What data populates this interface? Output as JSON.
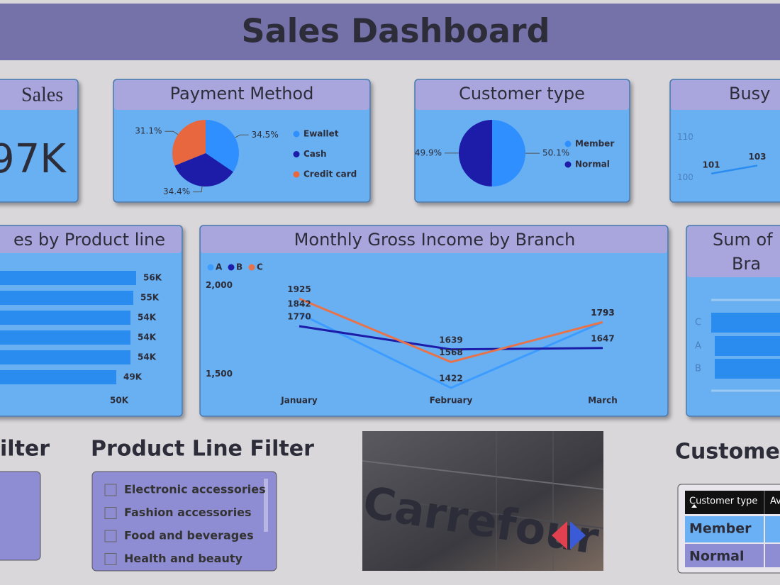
{
  "header": {
    "title": "Sales Dashboard"
  },
  "cards": [
    {
      "title": "Sales",
      "value": "97K"
    }
  ],
  "chart_data": [
    {
      "type": "pie",
      "title": "Payment Method",
      "categories": [
        "Ewallet",
        "Cash",
        "Credit card"
      ],
      "values": [
        34.5,
        34.4,
        31.1
      ],
      "value_labels": [
        "34.5%",
        "34.4%",
        "31.1%"
      ],
      "colors": [
        "#2f8fff",
        "#1c1ca8",
        "#e8673f"
      ]
    },
    {
      "type": "pie",
      "title": "Customer type",
      "categories": [
        "Member",
        "Normal"
      ],
      "values": [
        50.1,
        49.9
      ],
      "value_labels": [
        "50.1%",
        "49.9%"
      ],
      "colors": [
        "#2f8fff",
        "#1c1ca8"
      ]
    },
    {
      "type": "line",
      "title": "Busy",
      "categories": [
        null,
        null
      ],
      "values": [
        101,
        103
      ],
      "color": "#2b8cf0",
      "ylim": [
        98,
        112
      ],
      "yticks": [
        100,
        110
      ]
    },
    {
      "type": "hbar",
      "title": "es by Product line",
      "categories": [
        null,
        null,
        null,
        null,
        null,
        null
      ],
      "values": [
        56000,
        55000,
        54000,
        54000,
        54000,
        49000
      ],
      "value_labels": [
        "56K",
        "55K",
        "54K",
        "54K",
        "54K",
        "49K"
      ],
      "color": "#2b8cf0",
      "xlim": [
        0,
        60000
      ],
      "xticks": [
        {
          "value": 50000,
          "label": "50K"
        }
      ]
    },
    {
      "type": "line",
      "title": "Monthly Gross Income by Branch",
      "categories": [
        "January",
        "February",
        "March"
      ],
      "series": [
        {
          "name": "A",
          "color": "#3d9cff",
          "values": [
            1842,
            1422,
            1793
          ]
        },
        {
          "name": "B",
          "color": "#1c1ca8",
          "values": [
            1770,
            1639,
            1647
          ]
        },
        {
          "name": "C",
          "color": "#e8734a",
          "values": [
            1925,
            1568,
            1793
          ]
        }
      ],
      "ylim": [
        1400,
        2000
      ],
      "yticks": [
        {
          "value": 2000,
          "label": "2,000"
        },
        {
          "value": 1500,
          "label": "1,500"
        }
      ],
      "legend": "top-left"
    },
    {
      "type": "cropped-bar",
      "title": [
        "Sum of",
        "Bra"
      ],
      "categories": [
        "C",
        "A",
        "B"
      ]
    }
  ],
  "filters": [
    {
      "title": "ilter"
    },
    {
      "title": "Product Line Filter",
      "items": [
        "Electronic accessories",
        "Fashion accessories",
        "Food and beverages",
        "Health and beauty"
      ]
    }
  ],
  "image": {
    "text": "Carrefour"
  },
  "table": {
    "title": "Custome",
    "columns": [
      "Customer type",
      "Av"
    ],
    "rows": [
      [
        "Member"
      ],
      [
        "Normal"
      ]
    ]
  }
}
